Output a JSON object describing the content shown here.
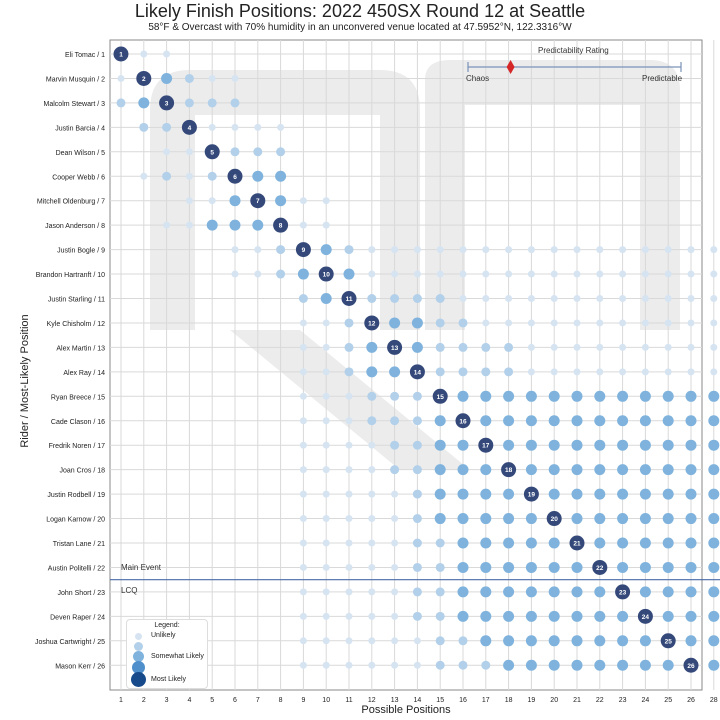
{
  "title": "Likely Finish Positions: 2022 450SX Round 12 at Seattle",
  "subtitle": "58°F & Overcast with 70% humidity in an unconvered venue located at 47.5952°N, 122.3316°W",
  "xlabel": "Possible Positions",
  "ylabel": "Rider / Most-Likely Position",
  "annotations": {
    "main_event": "Main Event",
    "lcq": "LCQ",
    "predictability_title": "Predictability Rating",
    "chaos": "Chaos",
    "predictable": "Predictable"
  },
  "legend": {
    "title": "Legend:",
    "items": [
      {
        "label": "Unlikely",
        "level": 1
      },
      {
        "label": "",
        "level": 2
      },
      {
        "label": "Somewhat Likely",
        "level": 3
      },
      {
        "label": "",
        "level": 4
      },
      {
        "label": "Most Likely",
        "level": 5
      }
    ]
  },
  "colors": {
    "level1": "#d6e4f2",
    "level2": "#b3d0ea",
    "level3": "#7fb3dd",
    "level4": "#4f8fcb",
    "level5": "#2e4f86",
    "highlight": "#34497a",
    "cutline": "#4a6aa6",
    "predictability_marker": "#d62728",
    "watermark": "#ececec"
  },
  "chart_data": {
    "type": "scatter",
    "x_ticks": [
      1,
      2,
      3,
      4,
      5,
      6,
      7,
      8,
      9,
      10,
      11,
      12,
      13,
      14,
      15,
      16,
      17,
      18,
      19,
      20,
      21,
      22,
      23,
      24,
      25,
      26,
      28
    ],
    "riders": [
      {
        "name": "Eli Tomac / 1",
        "most_likely": 1,
        "probs": [
          5,
          1,
          1,
          0,
          0,
          0,
          0,
          0,
          0,
          0,
          0,
          0,
          0,
          0,
          0,
          0,
          0,
          0,
          0,
          0,
          0,
          0,
          0,
          0,
          0,
          0,
          0
        ]
      },
      {
        "name": "Marvin Musquin / 2",
        "most_likely": 2,
        "probs": [
          1,
          5,
          3,
          2,
          1,
          1,
          0,
          0,
          0,
          0,
          0,
          0,
          0,
          0,
          0,
          0,
          0,
          0,
          0,
          0,
          0,
          0,
          0,
          0,
          0,
          0,
          0
        ]
      },
      {
        "name": "Malcolm Stewart / 3",
        "most_likely": 3,
        "probs": [
          2,
          3,
          5,
          2,
          2,
          2,
          0,
          0,
          0,
          0,
          0,
          0,
          0,
          0,
          0,
          0,
          0,
          0,
          0,
          0,
          0,
          0,
          0,
          0,
          0,
          0,
          0
        ]
      },
      {
        "name": "Justin Barcia / 4",
        "most_likely": 4,
        "probs": [
          0,
          2,
          2,
          5,
          1,
          1,
          1,
          1,
          0,
          0,
          0,
          0,
          0,
          0,
          0,
          0,
          0,
          0,
          0,
          0,
          0,
          0,
          0,
          0,
          0,
          0,
          0
        ]
      },
      {
        "name": "Dean Wilson / 5",
        "most_likely": 5,
        "probs": [
          0,
          0,
          1,
          1,
          5,
          2,
          2,
          2,
          0,
          0,
          0,
          0,
          0,
          0,
          0,
          0,
          0,
          0,
          0,
          0,
          0,
          0,
          0,
          0,
          0,
          0,
          0
        ]
      },
      {
        "name": "Cooper Webb / 6",
        "most_likely": 6,
        "probs": [
          0,
          1,
          2,
          1,
          2,
          5,
          3,
          3,
          0,
          0,
          0,
          0,
          0,
          0,
          0,
          0,
          0,
          0,
          0,
          0,
          0,
          0,
          0,
          0,
          0,
          0,
          0
        ]
      },
      {
        "name": "Mitchell Oldenburg / 7",
        "most_likely": 7,
        "probs": [
          0,
          0,
          0,
          1,
          1,
          3,
          5,
          3,
          1,
          1,
          0,
          0,
          0,
          0,
          0,
          0,
          0,
          0,
          0,
          0,
          0,
          0,
          0,
          0,
          0,
          0,
          0
        ]
      },
      {
        "name": "Jason Anderson / 8",
        "most_likely": 8,
        "probs": [
          0,
          0,
          1,
          1,
          3,
          3,
          3,
          5,
          1,
          1,
          0,
          0,
          0,
          0,
          0,
          0,
          0,
          0,
          0,
          0,
          0,
          0,
          0,
          0,
          0,
          0,
          0
        ]
      },
      {
        "name": "Justin Bogle / 9",
        "most_likely": 9,
        "probs": [
          0,
          0,
          0,
          0,
          0,
          1,
          1,
          2,
          5,
          3,
          2,
          1,
          1,
          1,
          1,
          1,
          1,
          1,
          1,
          1,
          1,
          1,
          1,
          1,
          1,
          1,
          1
        ]
      },
      {
        "name": "Brandon Hartranft / 10",
        "most_likely": 10,
        "probs": [
          0,
          0,
          0,
          0,
          0,
          1,
          1,
          2,
          3,
          5,
          3,
          1,
          1,
          1,
          1,
          1,
          1,
          1,
          1,
          1,
          1,
          1,
          1,
          1,
          1,
          1,
          1
        ]
      },
      {
        "name": "Justin Starling / 11",
        "most_likely": 11,
        "probs": [
          0,
          0,
          0,
          0,
          0,
          0,
          0,
          0,
          2,
          3,
          5,
          2,
          2,
          2,
          2,
          1,
          1,
          1,
          1,
          1,
          1,
          1,
          1,
          1,
          1,
          1,
          1
        ]
      },
      {
        "name": "Kyle Chisholm / 12",
        "most_likely": 12,
        "probs": [
          0,
          0,
          0,
          0,
          0,
          0,
          0,
          0,
          1,
          1,
          2,
          5,
          3,
          3,
          2,
          2,
          1,
          1,
          1,
          1,
          1,
          1,
          1,
          1,
          1,
          1,
          1
        ]
      },
      {
        "name": "Alex Martin / 13",
        "most_likely": 13,
        "probs": [
          0,
          0,
          0,
          0,
          0,
          0,
          0,
          0,
          1,
          1,
          2,
          3,
          5,
          3,
          2,
          2,
          2,
          2,
          1,
          1,
          1,
          1,
          1,
          1,
          1,
          1,
          1
        ]
      },
      {
        "name": "Alex Ray / 14",
        "most_likely": 14,
        "probs": [
          0,
          0,
          0,
          0,
          0,
          0,
          0,
          0,
          1,
          1,
          2,
          3,
          3,
          5,
          2,
          2,
          2,
          2,
          1,
          1,
          1,
          1,
          1,
          1,
          1,
          1,
          1
        ]
      },
      {
        "name": "Ryan Breece / 15",
        "most_likely": 15,
        "probs": [
          0,
          0,
          0,
          0,
          0,
          0,
          0,
          0,
          1,
          1,
          1,
          2,
          2,
          2,
          5,
          3,
          3,
          3,
          3,
          3,
          3,
          3,
          3,
          3,
          3,
          3,
          3
        ]
      },
      {
        "name": "Cade Clason / 16",
        "most_likely": 16,
        "probs": [
          0,
          0,
          0,
          0,
          0,
          0,
          0,
          0,
          1,
          1,
          1,
          2,
          2,
          2,
          3,
          5,
          3,
          3,
          3,
          3,
          3,
          3,
          3,
          3,
          3,
          3,
          3
        ]
      },
      {
        "name": "Fredrik Noren / 17",
        "most_likely": 17,
        "probs": [
          0,
          0,
          0,
          0,
          0,
          0,
          0,
          0,
          1,
          1,
          1,
          1,
          2,
          2,
          3,
          3,
          5,
          3,
          3,
          3,
          3,
          3,
          3,
          3,
          3,
          3,
          3
        ]
      },
      {
        "name": "Joan Cros / 18",
        "most_likely": 18,
        "probs": [
          0,
          0,
          0,
          0,
          0,
          0,
          0,
          0,
          1,
          1,
          1,
          1,
          2,
          2,
          3,
          3,
          3,
          5,
          3,
          3,
          3,
          3,
          3,
          3,
          3,
          3,
          3
        ]
      },
      {
        "name": "Justin Rodbell / 19",
        "most_likely": 19,
        "probs": [
          0,
          0,
          0,
          0,
          0,
          0,
          0,
          0,
          1,
          1,
          1,
          1,
          1,
          2,
          3,
          3,
          3,
          3,
          5,
          3,
          3,
          3,
          3,
          3,
          3,
          3,
          3
        ]
      },
      {
        "name": "Logan Karnow / 20",
        "most_likely": 20,
        "probs": [
          0,
          0,
          0,
          0,
          0,
          0,
          0,
          0,
          1,
          1,
          1,
          1,
          1,
          2,
          3,
          3,
          3,
          3,
          3,
          5,
          3,
          3,
          3,
          3,
          3,
          3,
          3
        ]
      },
      {
        "name": "Tristan Lane / 21",
        "most_likely": 21,
        "probs": [
          0,
          0,
          0,
          0,
          0,
          0,
          0,
          0,
          1,
          1,
          1,
          1,
          1,
          2,
          2,
          3,
          3,
          3,
          3,
          3,
          5,
          3,
          3,
          3,
          3,
          3,
          3
        ]
      },
      {
        "name": "Austin Politelli / 22",
        "most_likely": 22,
        "probs": [
          0,
          0,
          0,
          0,
          0,
          0,
          0,
          0,
          1,
          1,
          1,
          1,
          1,
          2,
          2,
          3,
          3,
          3,
          3,
          3,
          3,
          5,
          3,
          3,
          3,
          3,
          3
        ]
      },
      {
        "name": "John Short / 23",
        "most_likely": 23,
        "probs": [
          0,
          0,
          0,
          0,
          0,
          0,
          0,
          0,
          1,
          1,
          1,
          1,
          1,
          2,
          2,
          3,
          3,
          3,
          3,
          3,
          3,
          3,
          5,
          3,
          3,
          3,
          3
        ]
      },
      {
        "name": "Deven Raper / 24",
        "most_likely": 24,
        "probs": [
          0,
          0,
          0,
          0,
          0,
          0,
          0,
          0,
          1,
          1,
          1,
          1,
          1,
          2,
          2,
          3,
          3,
          3,
          3,
          3,
          3,
          3,
          3,
          5,
          3,
          3,
          3
        ]
      },
      {
        "name": "Joshua Cartwright / 25",
        "most_likely": 25,
        "probs": [
          0,
          0,
          0,
          0,
          0,
          0,
          0,
          0,
          1,
          1,
          1,
          1,
          1,
          1,
          2,
          2,
          3,
          3,
          3,
          3,
          3,
          3,
          3,
          3,
          5,
          3,
          3
        ]
      },
      {
        "name": "Mason Kerr / 26",
        "most_likely": 26,
        "probs": [
          0,
          0,
          0,
          0,
          0,
          0,
          0,
          0,
          1,
          1,
          1,
          1,
          1,
          1,
          2,
          2,
          2,
          3,
          3,
          3,
          3,
          3,
          3,
          3,
          3,
          5,
          3
        ]
      }
    ],
    "predictability_rating": 0.2,
    "cutline_after_rank": 22,
    "grid": true
  }
}
